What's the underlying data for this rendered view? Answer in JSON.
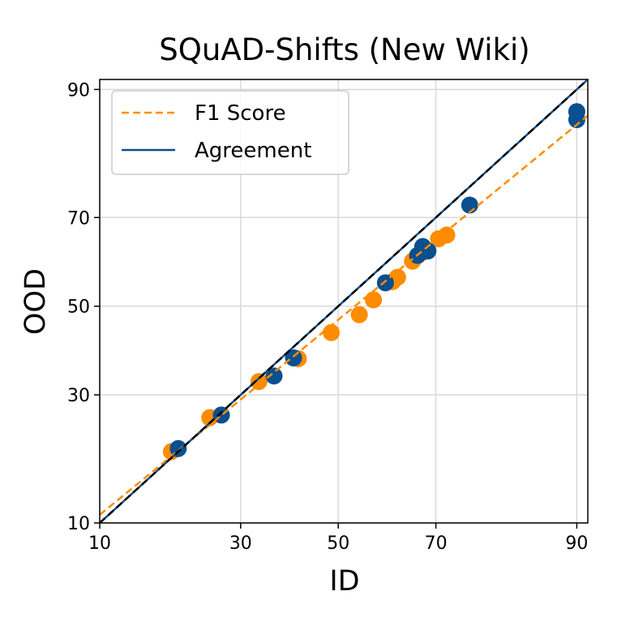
{
  "chart_data": {
    "type": "scatter",
    "title": "SQuAD-Shifts (New Wiki)",
    "xlabel": "ID",
    "ylabel": "OOD",
    "scale": "probit",
    "xlim": [
      10,
      91
    ],
    "ylim": [
      10,
      91
    ],
    "xticks": [
      10,
      30,
      50,
      70,
      90
    ],
    "yticks": [
      10,
      30,
      50,
      70,
      90
    ],
    "grid": true,
    "legend_position": "top-left",
    "series": [
      {
        "name": "F1 Score",
        "color": "#ff8c00",
        "fit_line": {
          "style": "dashed",
          "slope": 0.9,
          "intercept": -0.08
        },
        "points": [
          {
            "x": 18.5,
            "y": 19.5
          },
          {
            "x": 24.5,
            "y": 25.5
          },
          {
            "x": 33.5,
            "y": 32.8
          },
          {
            "x": 41.5,
            "y": 37.8
          },
          {
            "x": 48.5,
            "y": 43.8
          },
          {
            "x": 54.5,
            "y": 48.0
          },
          {
            "x": 57.5,
            "y": 51.5
          },
          {
            "x": 61.5,
            "y": 55.8
          },
          {
            "x": 62.5,
            "y": 56.8
          },
          {
            "x": 65.5,
            "y": 60.5
          },
          {
            "x": 67.5,
            "y": 62.5
          },
          {
            "x": 70.5,
            "y": 65.5
          },
          {
            "x": 72.0,
            "y": 66.3
          }
        ]
      },
      {
        "name": "Agreement",
        "color": "#0a4f8f",
        "fit_line": {
          "style": "solid",
          "slope": 1.0,
          "intercept": 0.0
        },
        "points": [
          {
            "x": 19.5,
            "y": 20.0
          },
          {
            "x": 26.5,
            "y": 26.0
          },
          {
            "x": 36.5,
            "y": 34.0
          },
          {
            "x": 40.5,
            "y": 38.0
          },
          {
            "x": 60.0,
            "y": 55.5
          },
          {
            "x": 66.5,
            "y": 61.8
          },
          {
            "x": 67.5,
            "y": 63.8
          },
          {
            "x": 68.5,
            "y": 62.8
          },
          {
            "x": 76.0,
            "y": 72.5
          },
          {
            "x": 90.0,
            "y": 87.5
          },
          {
            "x": 90.0,
            "y": 86.5
          }
        ]
      }
    ],
    "reference_line": {
      "style": "dashed",
      "color": "#000000",
      "description": "y = x"
    }
  }
}
